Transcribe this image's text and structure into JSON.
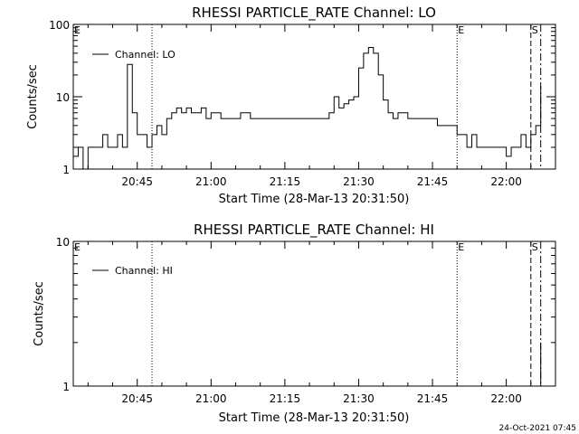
{
  "chart_data": [
    {
      "type": "line",
      "title": "RHESSI PARTICLE_RATE Channel: LO",
      "xlabel": "Start Time (28-Mar-13 20:31:50)",
      "ylabel": "Counts/sec",
      "yscale": "log",
      "ylim": [
        1,
        100
      ],
      "xlim": [
        "20:32",
        "22:10"
      ],
      "y_ticks": [
        "1",
        "10",
        "100"
      ],
      "x_ticks": [
        "20:45",
        "21:00",
        "21:15",
        "21:30",
        "21:45",
        "22:00"
      ],
      "legend": {
        "label": "Channel: LO",
        "placement": "top-left"
      },
      "markers": [
        {
          "label": "",
          "time": "20:48",
          "style": "dotted"
        },
        {
          "label": "E",
          "time": "20:32",
          "style": "none"
        },
        {
          "label": "E",
          "time": "21:50",
          "style": "dotted"
        },
        {
          "label": "S",
          "time": "22:05",
          "style": "dashed"
        },
        {
          "label": "",
          "time": "22:07",
          "style": "dash-dot"
        }
      ],
      "series": [
        {
          "x": [
            "20:32",
            "20:33",
            "20:34",
            "20:35",
            "20:36",
            "20:37",
            "20:38",
            "20:39",
            "20:40",
            "20:41",
            "20:42",
            "20:43",
            "20:44",
            "20:45",
            "20:46",
            "20:47",
            "20:48",
            "20:49",
            "20:50",
            "20:51",
            "20:52",
            "20:53",
            "20:54",
            "20:55",
            "20:56",
            "20:57",
            "20:58",
            "20:59",
            "21:00",
            "21:02",
            "21:04",
            "21:06",
            "21:08",
            "21:10",
            "21:12",
            "21:14",
            "21:16",
            "21:18",
            "21:20",
            "21:22",
            "21:24",
            "21:25",
            "21:26",
            "21:27",
            "21:28",
            "21:29",
            "21:30",
            "21:31",
            "21:32",
            "21:33",
            "21:34",
            "21:35",
            "21:36",
            "21:37",
            "21:38",
            "21:40",
            "21:42",
            "21:44",
            "21:46",
            "21:48",
            "21:50",
            "21:51",
            "21:52",
            "21:53",
            "21:54",
            "21:56",
            "21:58",
            "22:00",
            "22:01",
            "22:02",
            "22:03",
            "22:04",
            "22:05",
            "22:06",
            "22:07"
          ],
          "values": [
            1.5,
            2,
            1,
            2,
            2,
            2,
            3,
            2,
            2,
            3,
            2,
            28,
            6,
            3,
            3,
            2,
            3,
            4,
            3,
            5,
            6,
            7,
            6,
            7,
            6,
            6,
            7,
            5,
            6,
            5,
            5,
            6,
            5,
            5,
            5,
            5,
            5,
            5,
            5,
            5,
            6,
            10,
            7,
            8,
            9,
            10,
            25,
            40,
            48,
            40,
            20,
            9,
            6,
            5,
            6,
            5,
            5,
            5,
            4,
            4,
            3,
            3,
            2,
            3,
            2,
            2,
            2,
            1.5,
            2,
            2,
            3,
            2,
            3,
            4,
            14
          ]
        }
      ]
    },
    {
      "type": "line",
      "title": "RHESSI PARTICLE_RATE Channel: HI",
      "xlabel": "Start Time (28-Mar-13 20:31:50)",
      "ylabel": "Counts/sec",
      "yscale": "log",
      "ylim": [
        1,
        10
      ],
      "xlim": [
        "20:32",
        "22:10"
      ],
      "y_ticks": [
        "1",
        "10"
      ],
      "x_ticks": [
        "20:45",
        "21:00",
        "21:15",
        "21:30",
        "21:45",
        "22:00"
      ],
      "legend": {
        "label": "Channel: HI",
        "placement": "top-left"
      },
      "markers": [
        {
          "label": "",
          "time": "20:48",
          "style": "dotted"
        },
        {
          "label": "E",
          "time": "20:32",
          "style": "none"
        },
        {
          "label": "E",
          "time": "21:50",
          "style": "dotted"
        },
        {
          "label": "S",
          "time": "22:05",
          "style": "dashed"
        },
        {
          "label": "",
          "time": "22:07",
          "style": "dash-dot"
        }
      ],
      "series": [
        {
          "x": [
            "22:06",
            "22:07"
          ],
          "values": [
            1,
            2
          ]
        }
      ]
    }
  ],
  "footer": {
    "timestamp": "24-Oct-2021 07:45"
  }
}
